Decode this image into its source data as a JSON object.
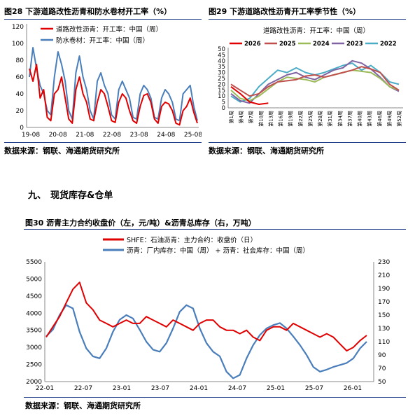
{
  "fig28": {
    "title": "图28  下游道路改性沥青和防水卷材开工率（%）",
    "source": "数据来源：钢联、海通期货研究所",
    "legend": [
      "道路改性沥青：开工率：中国（周）",
      "防水卷材：开工率：中国（周）"
    ],
    "colors": [
      "#e00000",
      "#4a7ebb"
    ],
    "chart_data": {
      "type": "line",
      "x_ticks": [
        "19-08",
        "20-08",
        "21-08",
        "22-08",
        "23-08",
        "24-08",
        "25-08"
      ],
      "ylim": [
        0,
        120
      ],
      "y_ticks": [
        0,
        20,
        40,
        60,
        80,
        100,
        120
      ],
      "series": [
        {
          "name": "道路改性沥青：开工率：中国（周）",
          "values": [
            70,
            55,
            75,
            35,
            45,
            12,
            8,
            40,
            45,
            60,
            35,
            10,
            5,
            45,
            60,
            40,
            30,
            10,
            8,
            30,
            45,
            40,
            25,
            8,
            6,
            30,
            40,
            35,
            20,
            8,
            5,
            25,
            38,
            40,
            30,
            10,
            5,
            25,
            30,
            28,
            20,
            5,
            3,
            20,
            25,
            35,
            18,
            5
          ]
        },
        {
          "name": "防水卷材：开工率：中国（周）",
          "values": [
            60,
            95,
            70,
            50,
            40,
            20,
            15,
            60,
            90,
            75,
            55,
            20,
            10,
            65,
            85,
            60,
            45,
            20,
            10,
            55,
            65,
            50,
            40,
            15,
            10,
            45,
            55,
            45,
            35,
            12,
            10,
            40,
            50,
            45,
            35,
            12,
            10,
            35,
            45,
            40,
            30,
            10,
            8,
            40,
            45,
            50,
            25,
            8
          ]
        }
      ]
    }
  },
  "fig29": {
    "title": "图29  下游道路改性沥青开工率季节性（%）",
    "source": "数据来源：钢联、海通期货研究所",
    "subtitle": "道路改性沥青：开工率：中国（周）",
    "colors": {
      "2026": "#e00000",
      "2025": "#c0504d",
      "2024": "#9bbb59",
      "2023": "#8064a2",
      "2022": "#4bacc6"
    },
    "chart_data": {
      "type": "line",
      "x_ticks": [
        "第1周",
        "第4周",
        "第7周",
        "第10周",
        "第13周",
        "第16周",
        "第19周",
        "第22周",
        "第25周",
        "第28周",
        "第31周",
        "第34周",
        "第37周",
        "第40周",
        "第43周",
        "第46周",
        "第49周",
        "第52周"
      ],
      "ylim": [
        0,
        50
      ],
      "y_ticks": [
        0,
        5,
        10,
        15,
        20,
        25,
        30,
        35,
        40,
        45,
        50
      ],
      "series": [
        {
          "name": "2026",
          "values": [
            18,
            12,
            5,
            3,
            4
          ]
        },
        {
          "name": "2025",
          "values": [
            20,
            15,
            10,
            12,
            18,
            22,
            23,
            24,
            27,
            28,
            26,
            28,
            30,
            32,
            35,
            33,
            30,
            20,
            15
          ]
        },
        {
          "name": "2024",
          "values": [
            15,
            8,
            6,
            10,
            16,
            22,
            26,
            25,
            24,
            22,
            26,
            28,
            30,
            32,
            31,
            30,
            25,
            18,
            15
          ]
        },
        {
          "name": "2023",
          "values": [
            12,
            6,
            4,
            12,
            20,
            24,
            28,
            30,
            26,
            24,
            28,
            32,
            34,
            40,
            38,
            33,
            26,
            18,
            14
          ]
        },
        {
          "name": "2022",
          "values": [
            10,
            5,
            8,
            18,
            25,
            32,
            30,
            34,
            30,
            28,
            30,
            33,
            36,
            38,
            32,
            36,
            30,
            22,
            20
          ]
        }
      ]
    }
  },
  "section": {
    "number": "九、",
    "title": "现货库存&仓单"
  },
  "fig30": {
    "title": "图30  沥青主力合约收盘价（左，元/吨）&沥青总库存（右，万吨）",
    "source": "数据来源：钢联、海通期货研究所",
    "legend": [
      "SHFE：石油沥青：主力合约：收盘价（日）",
      "沥青：厂内库存：中国（周） + 沥青：社会库存：中国（周）"
    ],
    "colors": [
      "#e00000",
      "#4a7ebb"
    ],
    "chart_data": {
      "type": "line",
      "x_ticks": [
        "22-01",
        "22-07",
        "23-01",
        "23-07",
        "24-01",
        "24-07",
        "25-01",
        "25-07",
        "26-01"
      ],
      "ylim_left": [
        2000,
        5500
      ],
      "y_ticks_left": [
        2000,
        2500,
        3000,
        3500,
        4000,
        4500,
        5000,
        5500
      ],
      "ylim_right": [
        50,
        230
      ],
      "y_ticks_right": [
        50,
        70,
        90,
        110,
        130,
        150,
        170,
        190,
        210,
        230
      ],
      "series": [
        {
          "name": "SHFE：石油沥青：主力合约：收盘价（日）",
          "axis": "left",
          "values": [
            3300,
            3600,
            3900,
            4300,
            4700,
            4900,
            4300,
            4100,
            3800,
            3700,
            3600,
            3700,
            3800,
            3700,
            3700,
            3900,
            3800,
            3700,
            3600,
            3800,
            3700,
            3600,
            3500,
            3700,
            3800,
            3800,
            3600,
            3500,
            3500,
            3400,
            3500,
            3300,
            3200,
            3500,
            3600,
            3600,
            3500,
            3700,
            3600,
            3500,
            3400,
            3300,
            3400,
            3300,
            3100,
            2900,
            3000,
            3200,
            3350
          ]
        },
        {
          "name": "沥青：厂内库存：中国（周） + 沥青：社会库存：中国（周）",
          "axis": "right",
          "values": [
            118,
            128,
            150,
            165,
            160,
            125,
            100,
            88,
            85,
            100,
            125,
            143,
            150,
            145,
            128,
            110,
            98,
            95,
            108,
            130,
            155,
            165,
            160,
            130,
            108,
            95,
            88,
            65,
            55,
            60,
            85,
            105,
            120,
            130,
            135,
            138,
            130,
            118,
            105,
            90,
            72,
            65,
            68,
            72,
            75,
            78,
            85,
            100,
            110
          ]
        }
      ]
    }
  }
}
